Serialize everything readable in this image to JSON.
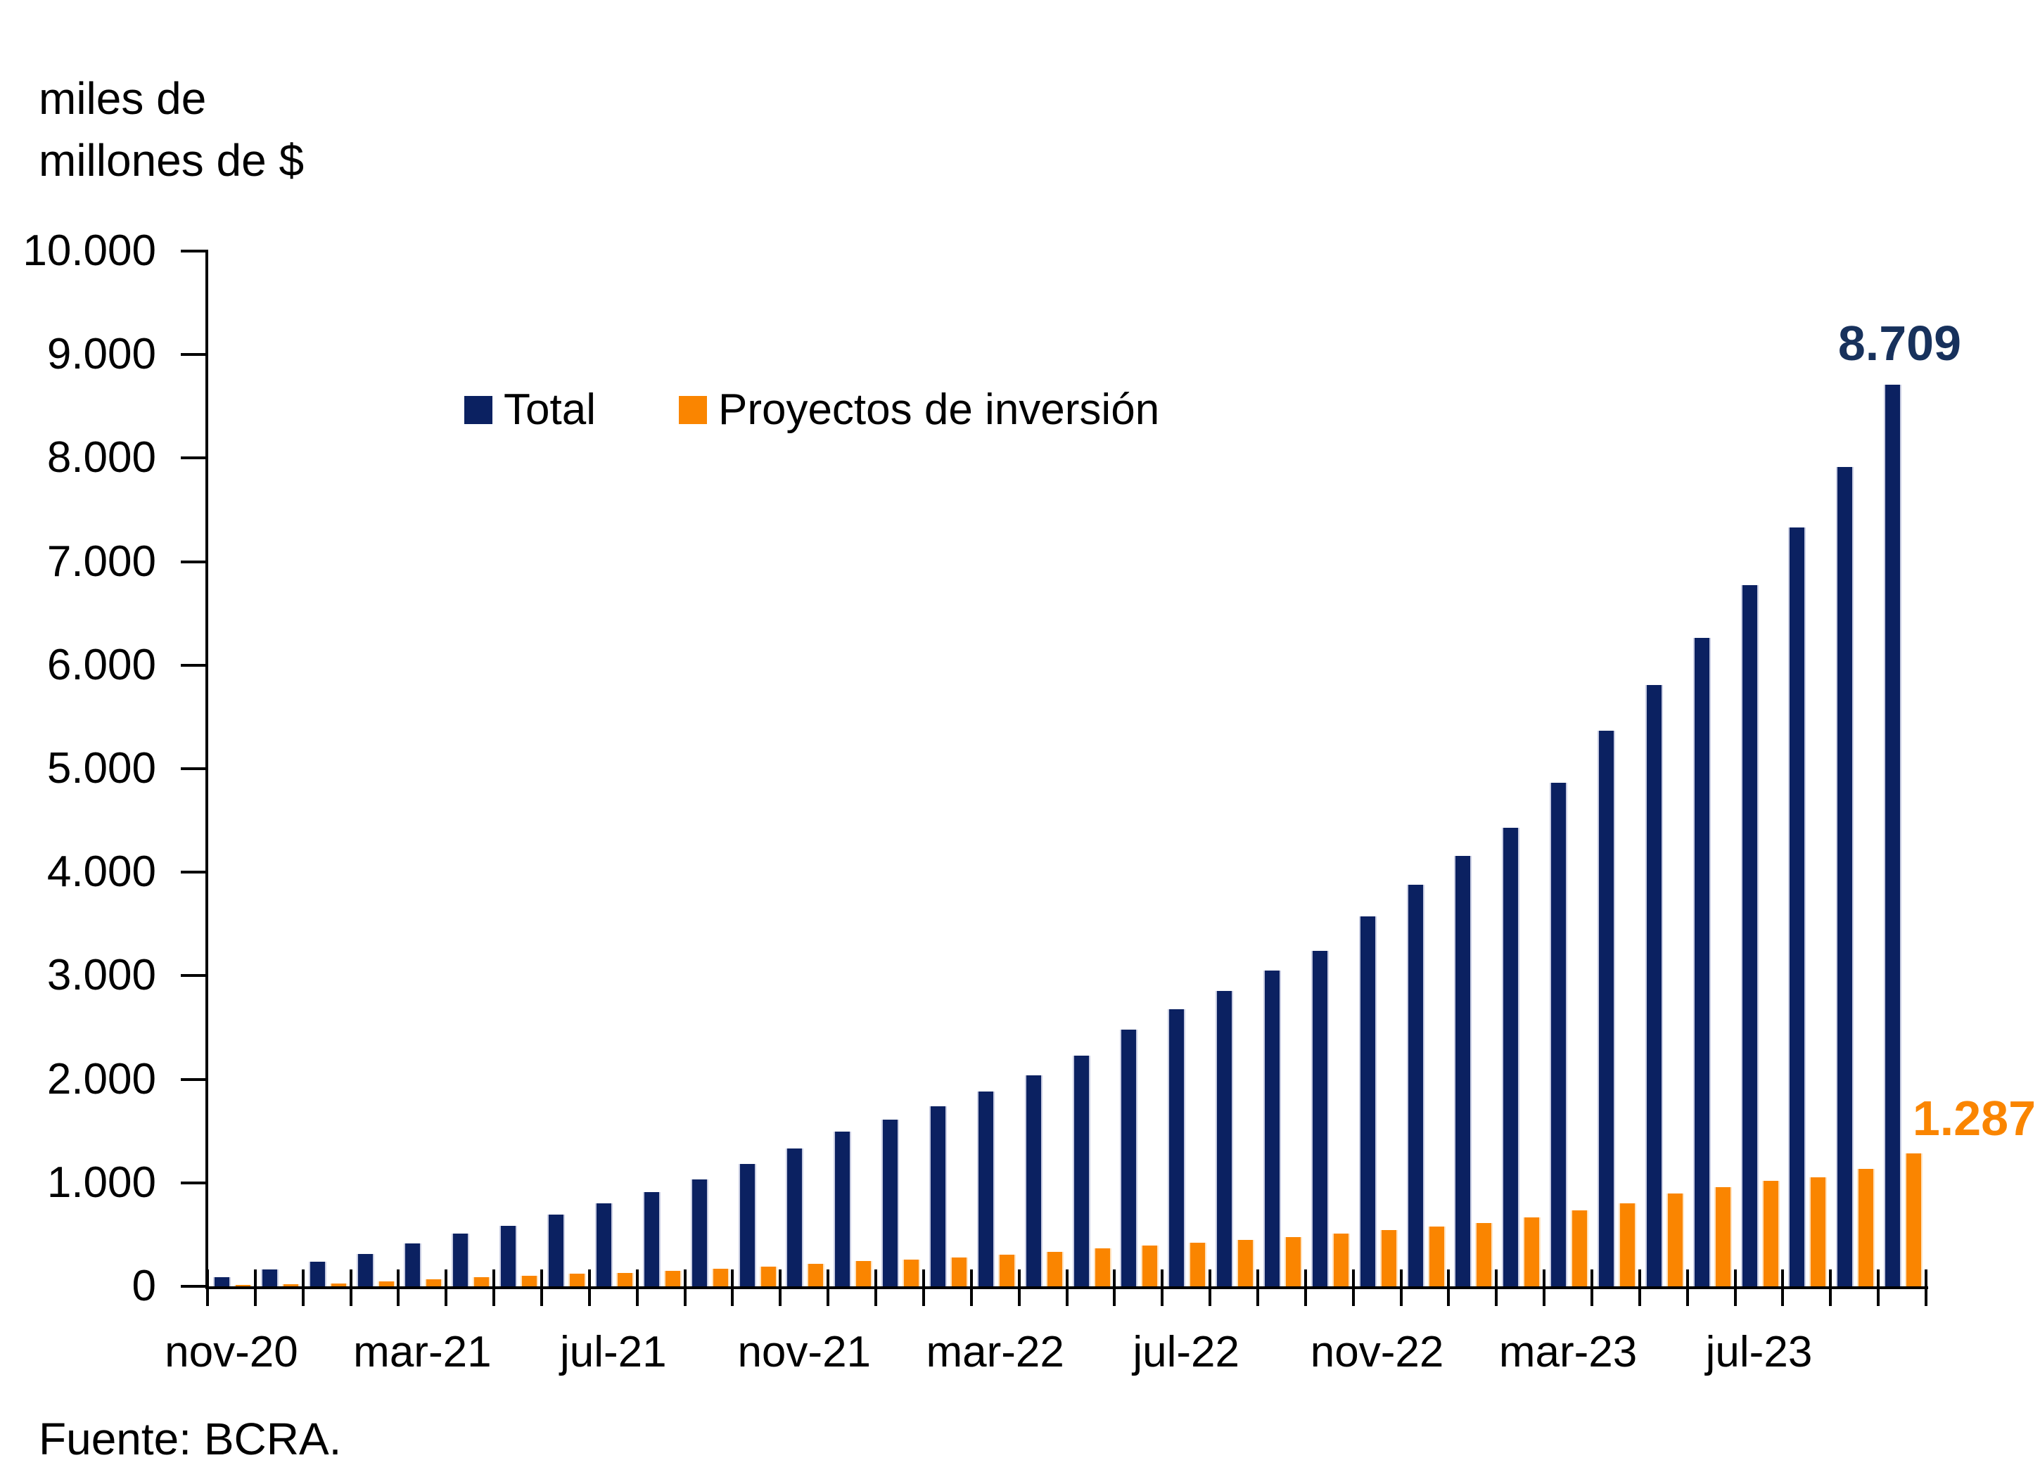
{
  "title": {
    "line1": "miles de",
    "line2": "millones de $"
  },
  "legend": {
    "items": [
      {
        "label": "Total",
        "color": "#0B2161"
      },
      {
        "label": "Proyectos de inversión",
        "color": "#FA8500"
      }
    ]
  },
  "annotations": {
    "total_last": "8.709",
    "proyectos_last": "1.287"
  },
  "footer": {
    "source": "Fuente: BCRA."
  },
  "y_axis": {
    "tick_labels": [
      "0",
      "1.000",
      "2.000",
      "3.000",
      "4.000",
      "5.000",
      "6.000",
      "7.000",
      "8.000",
      "9.000",
      "10.000"
    ]
  },
  "x_axis": {
    "tick_labels": [
      "nov-20",
      "mar-21",
      "jul-21",
      "nov-21",
      "mar-22",
      "jul-22",
      "nov-22",
      "mar-23",
      "jul-23"
    ],
    "label_every": 4
  },
  "chart_data": {
    "type": "bar",
    "title": "miles de millones de $",
    "xlabel": "",
    "ylabel": "miles de millones de $",
    "ylim": [
      0,
      10000
    ],
    "ytick_step": 1000,
    "grid": false,
    "legend_position": "top-inside",
    "categories": [
      "nov-20",
      "dic-20",
      "ene-21",
      "feb-21",
      "mar-21",
      "abr-21",
      "may-21",
      "jun-21",
      "jul-21",
      "ago-21",
      "sep-21",
      "oct-21",
      "nov-21",
      "dic-21",
      "ene-22",
      "feb-22",
      "mar-22",
      "abr-22",
      "may-22",
      "jun-22",
      "jul-22",
      "ago-22",
      "sep-22",
      "oct-22",
      "nov-22",
      "dic-22",
      "ene-23",
      "feb-23",
      "mar-23",
      "abr-23",
      "may-23",
      "jun-23",
      "jul-23",
      "ago-23",
      "sep-23",
      "oct-23"
    ],
    "series": [
      {
        "name": "Total",
        "color": "#0B2161",
        "values": [
          85,
          165,
          240,
          310,
          415,
          510,
          585,
          695,
          800,
          910,
          1035,
          1180,
          1330,
          1495,
          1610,
          1740,
          1885,
          2040,
          2225,
          2480,
          2680,
          2850,
          3050,
          3240,
          3570,
          3880,
          4155,
          4430,
          4865,
          5370,
          5810,
          6265,
          6770,
          7330,
          7915,
          8709
        ]
      },
      {
        "name": "Proyectos de inversión",
        "color": "#FA8500",
        "values": [
          5,
          20,
          30,
          45,
          70,
          90,
          100,
          120,
          130,
          150,
          170,
          190,
          220,
          245,
          260,
          280,
          305,
          330,
          365,
          395,
          420,
          450,
          475,
          510,
          545,
          580,
          610,
          665,
          735,
          805,
          895,
          960,
          1020,
          1050,
          1135,
          1287
        ]
      }
    ],
    "annotations": [
      {
        "series": "Total",
        "category": "oct-23",
        "text": "8.709"
      },
      {
        "series": "Proyectos de inversión",
        "category": "oct-23",
        "text": "1.287"
      }
    ]
  }
}
